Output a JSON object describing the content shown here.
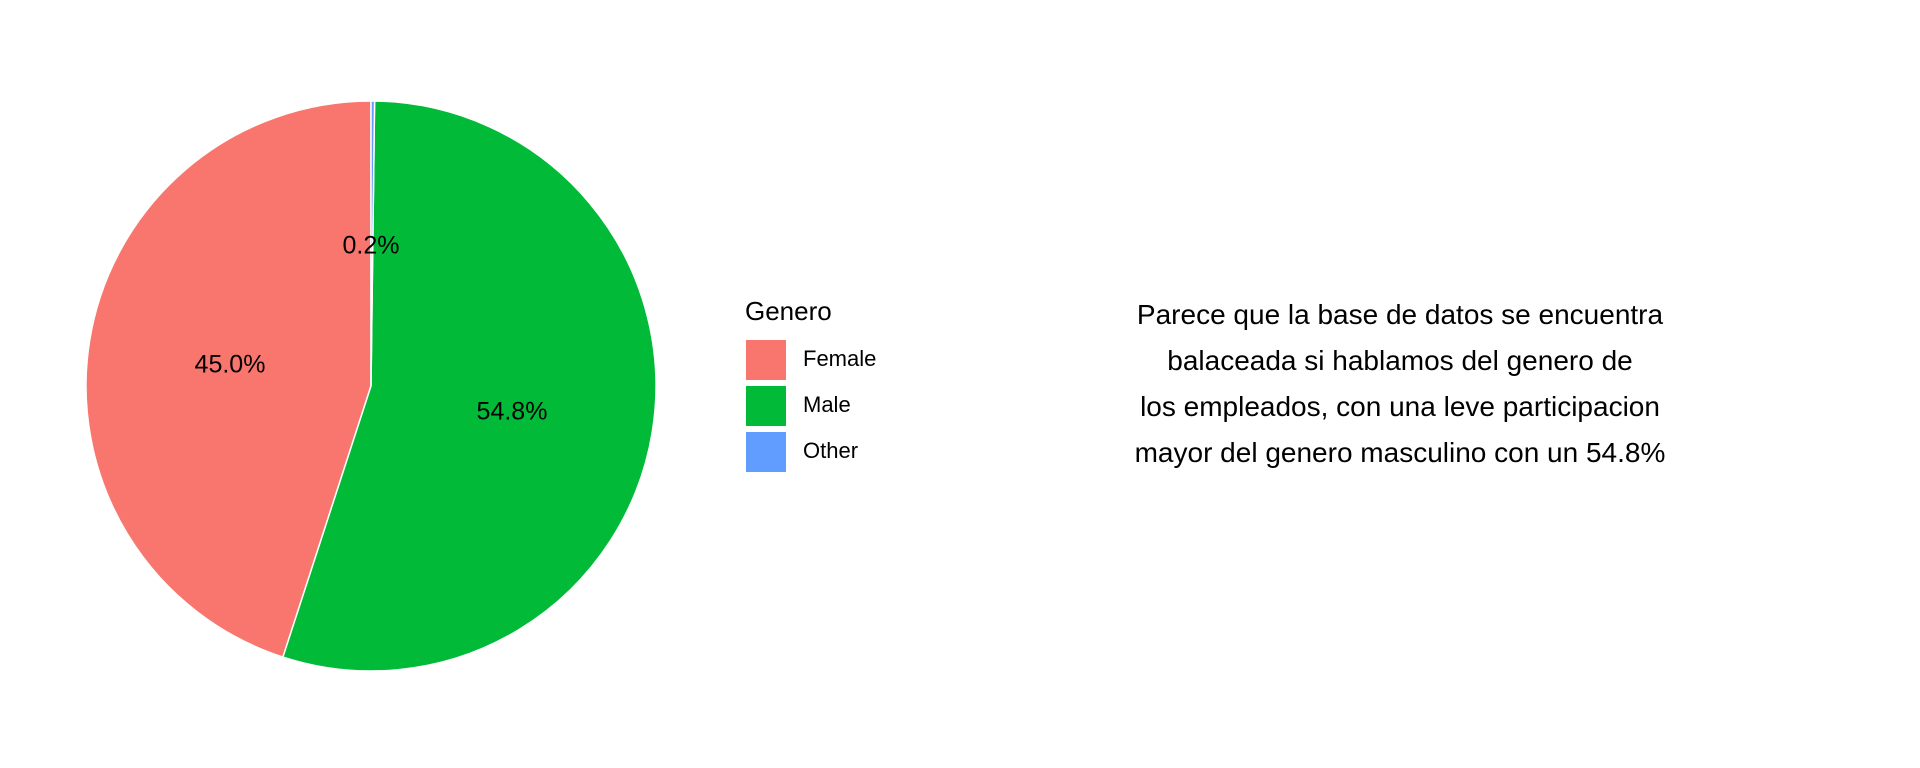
{
  "chart_data": {
    "type": "pie",
    "categories": [
      "Female",
      "Male",
      "Other"
    ],
    "values": [
      45.0,
      54.8,
      0.2
    ],
    "labels": [
      "45.0%",
      "54.8%",
      "0.2%"
    ],
    "colors": [
      "#F8766D",
      "#00BA38",
      "#619CFF"
    ],
    "legend": {
      "title": "Genero",
      "placement": "right"
    }
  },
  "annotation": {
    "lines": [
      "Parece que la base de datos se encuentra",
      "balaceada si hablamos del genero de",
      "los empleados, con una leve participacion",
      "mayor del genero masculino con un 54.8%"
    ]
  }
}
